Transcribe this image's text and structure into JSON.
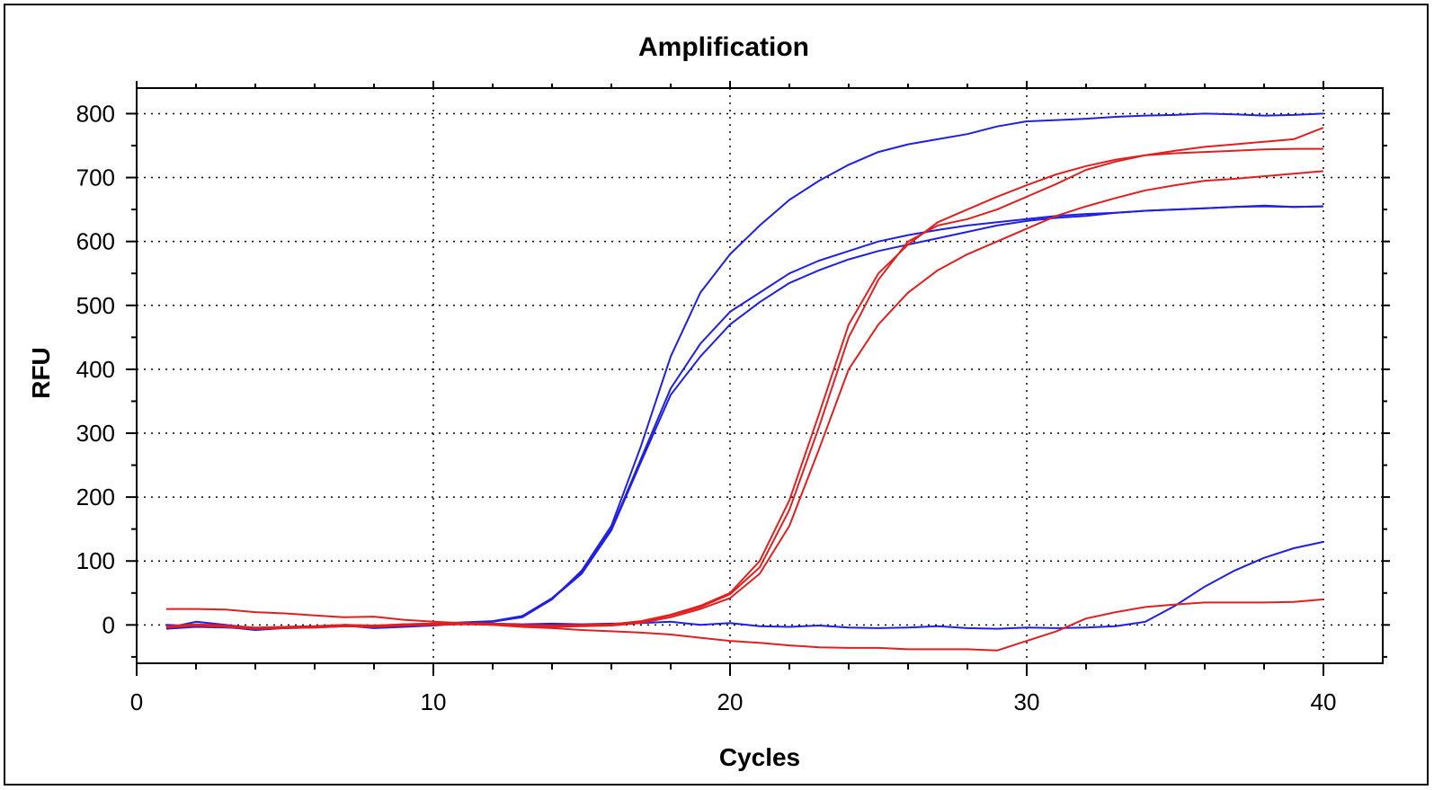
{
  "chart_data": {
    "type": "line",
    "title": "Amplification",
    "xlabel": "Cycles",
    "ylabel": "RFU",
    "xlim": [
      0,
      42
    ],
    "ylim": [
      -60,
      840
    ],
    "xticks": [
      0,
      10,
      20,
      30,
      40
    ],
    "yticks": [
      0,
      100,
      200,
      300,
      400,
      500,
      600,
      700,
      800
    ],
    "grid": true,
    "x": [
      1,
      2,
      3,
      4,
      5,
      6,
      7,
      8,
      9,
      10,
      11,
      12,
      13,
      14,
      15,
      16,
      17,
      18,
      19,
      20,
      21,
      22,
      23,
      24,
      25,
      26,
      27,
      28,
      29,
      30,
      31,
      32,
      33,
      34,
      35,
      36,
      37,
      38,
      39,
      40
    ],
    "series": [
      {
        "color": "#2020e0",
        "values": [
          -5,
          5,
          0,
          -5,
          -3,
          -2,
          0,
          -2,
          0,
          2,
          3,
          5,
          12,
          40,
          85,
          155,
          280,
          420,
          520,
          580,
          625,
          665,
          695,
          720,
          740,
          752,
          760,
          768,
          780,
          788,
          790,
          792,
          795,
          797,
          798,
          800,
          799,
          797,
          798,
          800
        ]
      },
      {
        "color": "#2020e0",
        "values": [
          -4,
          -2,
          -3,
          -5,
          -4,
          -3,
          -1,
          -2,
          1,
          2,
          4,
          6,
          14,
          42,
          82,
          150,
          260,
          370,
          440,
          490,
          520,
          550,
          570,
          585,
          600,
          610,
          618,
          625,
          630,
          635,
          640,
          643,
          645,
          648,
          650,
          652,
          654,
          655,
          654,
          655
        ]
      },
      {
        "color": "#2020e0",
        "values": [
          -6,
          -3,
          -4,
          -6,
          -5,
          -4,
          -2,
          -3,
          0,
          1,
          3,
          5,
          13,
          41,
          80,
          148,
          255,
          360,
          420,
          470,
          505,
          535,
          555,
          572,
          585,
          595,
          605,
          615,
          625,
          632,
          637,
          640,
          645,
          648,
          650,
          652,
          654,
          656,
          654,
          655
        ]
      },
      {
        "color": "#2020e0",
        "values": [
          0,
          -2,
          -3,
          -8,
          -5,
          -3,
          -1,
          -5,
          -3,
          -1,
          2,
          2,
          1,
          2,
          1,
          2,
          3,
          5,
          0,
          3,
          -2,
          -3,
          -1,
          -4,
          -5,
          -4,
          -2,
          -5,
          -6,
          -4,
          -5,
          -4,
          -2,
          5,
          30,
          60,
          85,
          105,
          120,
          130
        ]
      },
      {
        "color": "#e02020",
        "values": [
          -3,
          0,
          -2,
          -5,
          -4,
          -3,
          -1,
          -2,
          0,
          1,
          2,
          1,
          -1,
          -2,
          -1,
          0,
          5,
          15,
          28,
          48,
          90,
          180,
          310,
          450,
          540,
          600,
          625,
          635,
          650,
          670,
          690,
          712,
          725,
          735,
          742,
          748,
          752,
          756,
          760,
          778
        ]
      },
      {
        "color": "#e02020",
        "values": [
          -2,
          1,
          -1,
          -4,
          -3,
          -2,
          0,
          -1,
          1,
          2,
          3,
          2,
          0,
          -1,
          0,
          1,
          6,
          16,
          30,
          50,
          100,
          195,
          330,
          470,
          550,
          595,
          630,
          650,
          670,
          688,
          705,
          718,
          728,
          735,
          738,
          740,
          742,
          744,
          745,
          745
        ]
      },
      {
        "color": "#e02020",
        "values": [
          -4,
          -1,
          -3,
          -6,
          -5,
          -4,
          -2,
          -3,
          -1,
          0,
          1,
          0,
          -2,
          -3,
          -2,
          -1,
          3,
          12,
          25,
          42,
          80,
          155,
          275,
          400,
          470,
          520,
          555,
          580,
          600,
          620,
          640,
          655,
          668,
          680,
          688,
          695,
          698,
          702,
          706,
          710
        ]
      },
      {
        "color": "#e02020",
        "values": [
          25,
          25,
          24,
          20,
          18,
          15,
          12,
          13,
          8,
          5,
          3,
          0,
          -3,
          -5,
          -8,
          -10,
          -12,
          -15,
          -20,
          -25,
          -28,
          -32,
          -35,
          -36,
          -36,
          -38,
          -38,
          -38,
          -40,
          -25,
          -10,
          10,
          20,
          28,
          32,
          35,
          35,
          35,
          36,
          40
        ]
      }
    ]
  }
}
